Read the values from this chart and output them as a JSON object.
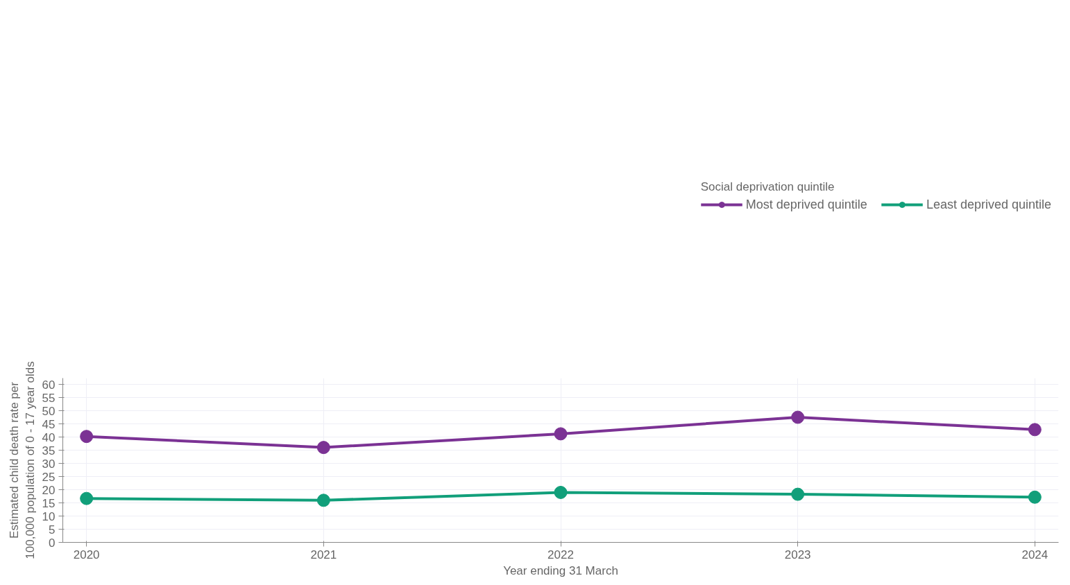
{
  "chart_data": {
    "type": "line",
    "xlabel": "Year ending 31 March",
    "ylabel": "Estimated child death rate per\n100,000 population of 0 - 17 year olds",
    "legend_title": "Social deprivation quintile",
    "x": [
      2020,
      2021,
      2022,
      2023,
      2024
    ],
    "series": [
      {
        "name": "Most deprived quintile",
        "color": "#7b3294",
        "values": [
          40.3,
          36.1,
          41.3,
          47.6,
          42.9
        ]
      },
      {
        "name": "Least deprived quintile",
        "color": "#119f7a",
        "values": [
          16.7,
          16.0,
          19.0,
          18.3,
          17.2
        ]
      }
    ],
    "xlim": [
      2019.9,
      2024.1
    ],
    "xticks": [
      2020,
      2021,
      2022,
      2023,
      2024
    ],
    "ylim": [
      0,
      62.5
    ],
    "yticks": [
      0,
      5,
      10,
      15,
      20,
      25,
      30,
      35,
      40,
      45,
      50,
      55,
      60
    ],
    "grid": true,
    "legend": "top right",
    "marker": "circle",
    "line_style": "solid"
  }
}
